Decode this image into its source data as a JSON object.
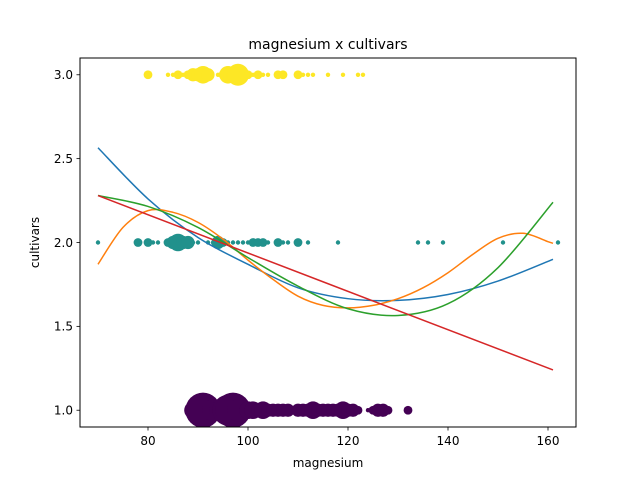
{
  "chart_data": {
    "type": "scatter",
    "title": "magnesium x cultivars",
    "xlabel": "magnesium",
    "ylabel": "cultivars",
    "xlim": [
      66.4,
      165.6
    ],
    "ylim": [
      0.9,
      3.1
    ],
    "xticks": [
      80,
      100,
      120,
      140,
      160
    ],
    "yticks": [
      1.0,
      1.5,
      2.0,
      2.5,
      3.0
    ],
    "xtick_labels": [
      "80",
      "100",
      "120",
      "140",
      "160"
    ],
    "ytick_labels": [
      "1.0",
      "1.5",
      "2.0",
      "2.5",
      "3.0"
    ],
    "grid": false,
    "legend": "none",
    "scatter_groups": [
      {
        "y": 3.0,
        "color": "#fde725",
        "points": [
          {
            "x": 80,
            "size": 2
          },
          {
            "x": 84,
            "size": 1
          },
          {
            "x": 85,
            "size": 1
          },
          {
            "x": 86,
            "size": 2
          },
          {
            "x": 87,
            "size": 1
          },
          {
            "x": 88,
            "size": 2
          },
          {
            "x": 89,
            "size": 3
          },
          {
            "x": 90,
            "size": 3
          },
          {
            "x": 91,
            "size": 4
          },
          {
            "x": 92,
            "size": 3
          },
          {
            "x": 94,
            "size": 1
          },
          {
            "x": 95,
            "size": 2
          },
          {
            "x": 96,
            "size": 4
          },
          {
            "x": 97,
            "size": 3
          },
          {
            "x": 98,
            "size": 5
          },
          {
            "x": 99,
            "size": 2
          },
          {
            "x": 100,
            "size": 2
          },
          {
            "x": 101,
            "size": 1
          },
          {
            "x": 102,
            "size": 2
          },
          {
            "x": 103,
            "size": 1
          },
          {
            "x": 104,
            "size": 1
          },
          {
            "x": 106,
            "size": 2
          },
          {
            "x": 107,
            "size": 2
          },
          {
            "x": 110,
            "size": 2
          },
          {
            "x": 111,
            "size": 1
          },
          {
            "x": 112,
            "size": 1
          },
          {
            "x": 113,
            "size": 1
          },
          {
            "x": 116,
            "size": 1
          },
          {
            "x": 119,
            "size": 1
          },
          {
            "x": 122,
            "size": 1
          },
          {
            "x": 123,
            "size": 1
          }
        ]
      },
      {
        "y": 2.0,
        "color": "#21918c",
        "points": [
          {
            "x": 70,
            "size": 1
          },
          {
            "x": 78,
            "size": 2
          },
          {
            "x": 80,
            "size": 2
          },
          {
            "x": 81,
            "size": 1
          },
          {
            "x": 82,
            "size": 1
          },
          {
            "x": 84,
            "size": 2
          },
          {
            "x": 85,
            "size": 3
          },
          {
            "x": 86,
            "size": 4
          },
          {
            "x": 87,
            "size": 3
          },
          {
            "x": 88,
            "size": 3
          },
          {
            "x": 89,
            "size": 1
          },
          {
            "x": 90,
            "size": 1
          },
          {
            "x": 92,
            "size": 1
          },
          {
            "x": 93,
            "size": 1
          },
          {
            "x": 94,
            "size": 3
          },
          {
            "x": 95,
            "size": 2
          },
          {
            "x": 96,
            "size": 1
          },
          {
            "x": 97,
            "size": 1
          },
          {
            "x": 98,
            "size": 1
          },
          {
            "x": 99,
            "size": 1
          },
          {
            "x": 100,
            "size": 1
          },
          {
            "x": 101,
            "size": 2
          },
          {
            "x": 102,
            "size": 2
          },
          {
            "x": 103,
            "size": 2
          },
          {
            "x": 104,
            "size": 1
          },
          {
            "x": 106,
            "size": 2
          },
          {
            "x": 107,
            "size": 1
          },
          {
            "x": 108,
            "size": 1
          },
          {
            "x": 110,
            "size": 2
          },
          {
            "x": 112,
            "size": 1
          },
          {
            "x": 118,
            "size": 1
          },
          {
            "x": 134,
            "size": 1
          },
          {
            "x": 136,
            "size": 1
          },
          {
            "x": 139,
            "size": 1
          },
          {
            "x": 151,
            "size": 1
          },
          {
            "x": 162,
            "size": 1
          }
        ]
      },
      {
        "y": 1.0,
        "color": "#440154",
        "points": [
          {
            "x": 89,
            "size": 4
          },
          {
            "x": 91,
            "size": 8
          },
          {
            "x": 93,
            "size": 5
          },
          {
            "x": 94,
            "size": 4
          },
          {
            "x": 95,
            "size": 5
          },
          {
            "x": 96,
            "size": 7
          },
          {
            "x": 97,
            "size": 8
          },
          {
            "x": 98,
            "size": 5
          },
          {
            "x": 100,
            "size": 4
          },
          {
            "x": 101,
            "size": 4
          },
          {
            "x": 102,
            "size": 3
          },
          {
            "x": 103,
            "size": 4
          },
          {
            "x": 104,
            "size": 3
          },
          {
            "x": 105,
            "size": 3
          },
          {
            "x": 106,
            "size": 3
          },
          {
            "x": 107,
            "size": 3
          },
          {
            "x": 108,
            "size": 3
          },
          {
            "x": 110,
            "size": 3
          },
          {
            "x": 111,
            "size": 3
          },
          {
            "x": 112,
            "size": 3
          },
          {
            "x": 113,
            "size": 4
          },
          {
            "x": 114,
            "size": 3
          },
          {
            "x": 115,
            "size": 3
          },
          {
            "x": 116,
            "size": 3
          },
          {
            "x": 117,
            "size": 3
          },
          {
            "x": 118,
            "size": 3
          },
          {
            "x": 119,
            "size": 4
          },
          {
            "x": 120,
            "size": 3
          },
          {
            "x": 121,
            "size": 3
          },
          {
            "x": 122,
            "size": 2
          },
          {
            "x": 124,
            "size": 1
          },
          {
            "x": 125,
            "size": 2
          },
          {
            "x": 126,
            "size": 3
          },
          {
            "x": 127,
            "size": 3
          },
          {
            "x": 128,
            "size": 2
          },
          {
            "x": 132,
            "size": 2
          }
        ]
      }
    ],
    "series": [
      {
        "color": "#1f77b4",
        "x": [
          70,
          80,
          90,
          100,
          110,
          120,
          130,
          140,
          150,
          161
        ],
        "y": [
          2.565,
          2.26,
          2.03,
          1.87,
          1.73,
          1.665,
          1.655,
          1.69,
          1.77,
          1.9
        ]
      },
      {
        "color": "#ff7f0e",
        "x": [
          70,
          75,
          80,
          85,
          90,
          95,
          100,
          105,
          110,
          115,
          120,
          125,
          130,
          135,
          140,
          145,
          150,
          155,
          160,
          161
        ],
        "y": [
          1.87,
          2.09,
          2.19,
          2.18,
          2.12,
          2.02,
          1.895,
          1.78,
          1.68,
          1.625,
          1.61,
          1.625,
          1.665,
          1.73,
          1.82,
          1.93,
          2.025,
          2.055,
          2.005,
          1.995
        ]
      },
      {
        "color": "#2ca02c",
        "x": [
          70,
          80,
          90,
          100,
          110,
          120,
          130,
          140,
          150,
          161
        ],
        "y": [
          2.28,
          2.215,
          2.09,
          1.91,
          1.74,
          1.605,
          1.565,
          1.635,
          1.85,
          2.24
        ]
      },
      {
        "color": "#d62728",
        "x": [
          70,
          161
        ],
        "y": [
          2.28,
          1.24
        ]
      }
    ]
  }
}
